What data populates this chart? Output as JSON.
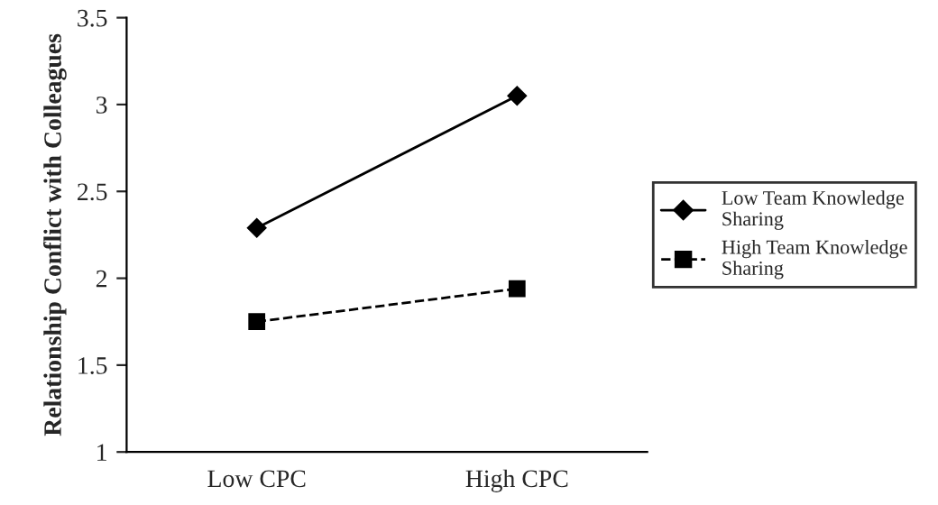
{
  "chart_data": {
    "type": "line",
    "ylabel": "Relationship Conflict with Colleagues",
    "categories": [
      "Low CPC",
      "High CPC"
    ],
    "series": [
      {
        "name": "Low Team Knowledge Sharing",
        "color": "#000000",
        "values": [
          2.29,
          3.05
        ],
        "marker": "diamond",
        "line_style": "solid"
      },
      {
        "name": "High Team Knowledge Sharing",
        "color": "#000000",
        "values": [
          1.75,
          1.94
        ],
        "marker": "square",
        "line_style": "dashed"
      }
    ],
    "ylim": [
      1,
      3.5
    ],
    "yticks": [
      1,
      1.5,
      2,
      2.5,
      3,
      3.5
    ],
    "grid": false,
    "legend": "right"
  }
}
